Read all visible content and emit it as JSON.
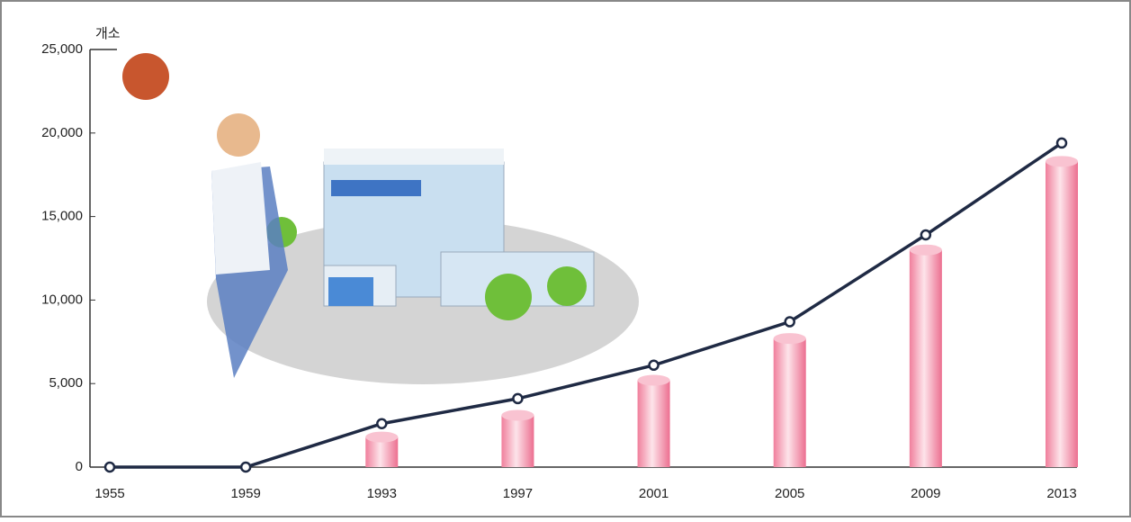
{
  "chart_data": {
    "type": "line",
    "y_label": "개소",
    "categories": [
      "1955",
      "1959",
      "1993",
      "1997",
      "2001",
      "2005",
      "2009",
      "2013"
    ],
    "series": [
      {
        "type": "line",
        "color": "#1f2a44",
        "values": [
          0,
          0,
          2600,
          4100,
          6100,
          8700,
          13900,
          19400
        ]
      },
      {
        "type": "bar",
        "color": "#f07f9c",
        "values": [
          null,
          null,
          1800,
          3100,
          5200,
          7700,
          13000,
          18300
        ]
      }
    ],
    "ylim": [
      0,
      25000
    ],
    "yticks": [
      0,
      {
        "value": 5000,
        "label": "5,000"
      },
      {
        "value": 10000,
        "label": "10,000"
      },
      {
        "value": 15000,
        "label": "15,000"
      },
      {
        "value": 20000,
        "label": "20,000"
      },
      {
        "value": 25000,
        "label": "25,000"
      }
    ]
  }
}
